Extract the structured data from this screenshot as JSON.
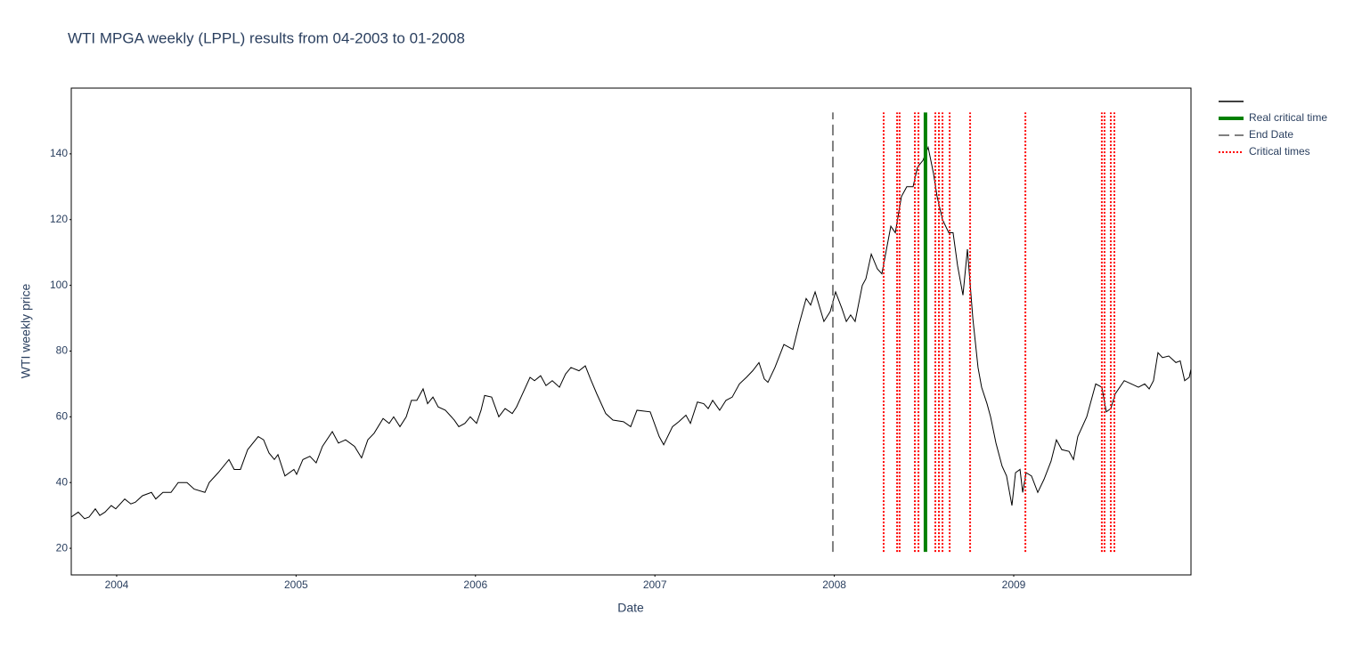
{
  "chart_data": {
    "type": "line",
    "title": "WTI MPGA weekly (LPPL) results from 04-2003 to 01-2008",
    "x_label": "Date",
    "y_label": "WTI weekly price",
    "xlim": [
      2003.747,
      2009.988
    ],
    "ylim": [
      11.9,
      160
    ],
    "xticks": [
      2004,
      2005,
      2006,
      2007,
      2008,
      2009
    ],
    "yticks": [
      20,
      40,
      60,
      80,
      100,
      120,
      140
    ],
    "vline_range": [
      18.9,
      152.6
    ],
    "series": [
      {
        "kind": "line",
        "color": "#000000",
        "width": 1,
        "x": [
          2003.747,
          2003.786,
          2003.821,
          2003.846,
          2003.881,
          2003.906,
          2003.935,
          2003.97,
          2003.995,
          2004.045,
          2004.079,
          2004.104,
          2004.144,
          2004.194,
          2004.218,
          2004.258,
          2004.303,
          2004.343,
          2004.392,
          2004.432,
          2004.492,
          2004.516,
          2004.566,
          2004.626,
          2004.655,
          2004.69,
          2004.73,
          2004.789,
          2004.819,
          2004.849,
          2004.879,
          2004.899,
          2004.938,
          2004.988,
          2005.003,
          2005.038,
          2005.077,
          2005.112,
          2005.147,
          2005.202,
          2005.236,
          2005.276,
          2005.326,
          2005.365,
          2005.4,
          2005.435,
          2005.485,
          2005.519,
          2005.544,
          2005.579,
          2005.614,
          2005.643,
          2005.673,
          2005.708,
          2005.733,
          2005.763,
          2005.792,
          2005.832,
          2005.882,
          2005.907,
          2005.941,
          2005.971,
          2006.006,
          2006.031,
          2006.051,
          2006.09,
          2006.13,
          2006.165,
          2006.205,
          2006.229,
          2006.254,
          2006.304,
          2006.329,
          2006.363,
          2006.393,
          2006.428,
          2006.468,
          2006.502,
          2006.532,
          2006.577,
          2006.612,
          2006.641,
          2006.676,
          2006.726,
          2006.766,
          2006.825,
          2006.865,
          2006.9,
          2006.974,
          2007.024,
          2007.049,
          2007.098,
          2007.133,
          2007.173,
          2007.198,
          2007.237,
          2007.272,
          2007.297,
          2007.322,
          2007.361,
          2007.396,
          2007.431,
          2007.471,
          2007.51,
          2007.545,
          2007.58,
          2007.61,
          2007.63,
          2007.669,
          2007.719,
          2007.769,
          2007.803,
          2007.843,
          2007.868,
          2007.893,
          2007.942,
          2007.977,
          2008.007,
          2008.042,
          2008.067,
          2008.091,
          2008.116,
          2008.156,
          2008.176,
          2008.206,
          2008.24,
          2008.265,
          2008.315,
          2008.34,
          2008.374,
          2008.404,
          2008.439,
          2008.464,
          2008.494,
          2008.523,
          2008.553,
          2008.573,
          2008.603,
          2008.638,
          2008.662,
          2008.687,
          2008.717,
          2008.742,
          2008.772,
          2008.801,
          2008.821,
          2008.851,
          2008.871,
          2008.901,
          2008.935,
          2008.96,
          2008.99,
          2009.01,
          2009.035,
          2009.05,
          2009.069,
          2009.099,
          2009.134,
          2009.169,
          2009.208,
          2009.238,
          2009.268,
          2009.308,
          2009.333,
          2009.357,
          2009.407,
          2009.457,
          2009.491,
          2009.516,
          2009.541,
          2009.566,
          2009.616,
          2009.656,
          2009.695,
          2009.73,
          2009.755,
          2009.779,
          2009.804,
          2009.829,
          2009.864,
          2009.904,
          2009.928,
          2009.953,
          2009.978,
          2009.988
        ],
        "values": [
          29.5,
          31,
          29,
          29.5,
          32,
          30,
          31,
          33,
          32,
          35,
          33.5,
          34,
          36,
          37,
          35,
          37,
          37,
          40,
          40,
          38,
          37,
          40,
          43,
          47,
          44,
          44,
          50,
          54,
          53,
          49,
          47,
          48.5,
          42,
          44,
          42.5,
          47,
          48,
          46,
          51,
          55.5,
          52,
          53,
          51,
          47.5,
          53,
          55,
          59.5,
          58,
          60,
          57,
          60,
          65,
          65,
          68.5,
          64,
          66,
          63,
          62,
          59,
          57,
          58,
          60,
          58,
          62,
          66.5,
          66,
          60,
          62.5,
          61,
          63,
          66,
          72,
          71,
          72.5,
          69.5,
          71,
          69,
          73,
          75,
          74,
          75.5,
          71.5,
          67,
          61,
          59,
          58.5,
          57,
          62,
          61.5,
          54,
          51.5,
          57,
          58.5,
          60.5,
          58,
          64.5,
          64,
          62.5,
          65,
          62,
          65,
          66,
          70,
          72,
          74,
          76.5,
          71.5,
          70.5,
          75,
          82,
          80.5,
          88,
          96,
          94,
          98,
          89,
          92,
          98,
          93,
          89,
          91,
          89,
          100,
          102,
          109.5,
          105,
          103.5,
          118,
          116,
          127,
          130,
          130,
          136,
          138,
          142,
          134,
          127,
          120,
          116,
          116,
          106,
          97,
          111,
          90,
          75,
          69,
          64,
          60,
          52,
          45,
          42,
          33,
          43,
          44,
          37,
          43,
          42,
          37,
          41,
          46.5,
          53,
          50,
          49.5,
          47,
          54,
          60,
          70,
          69,
          61.5,
          62.5,
          67,
          71,
          70,
          69,
          70,
          68.5,
          71,
          79.5,
          78,
          78.5,
          76.5,
          77,
          71,
          72,
          74.5
        ]
      },
      {
        "kind": "vline",
        "name": "Real critical time",
        "color": "#008000",
        "width": 4,
        "dash": "none",
        "x": [
          2008.508
        ]
      },
      {
        "kind": "vline",
        "name": "End Date",
        "color": "#808080",
        "width": 2,
        "dash": "12 6",
        "x": [
          2007.992
        ]
      },
      {
        "kind": "vline",
        "name": "Critical times",
        "color": "#ff0000",
        "width": 2,
        "dash": "2 2",
        "x": [
          2008.275,
          2008.35,
          2008.364,
          2008.449,
          2008.469,
          2008.563,
          2008.583,
          2008.603,
          2008.643,
          2008.757,
          2009.065,
          2009.491,
          2009.506,
          2009.541,
          2009.561
        ]
      }
    ]
  }
}
